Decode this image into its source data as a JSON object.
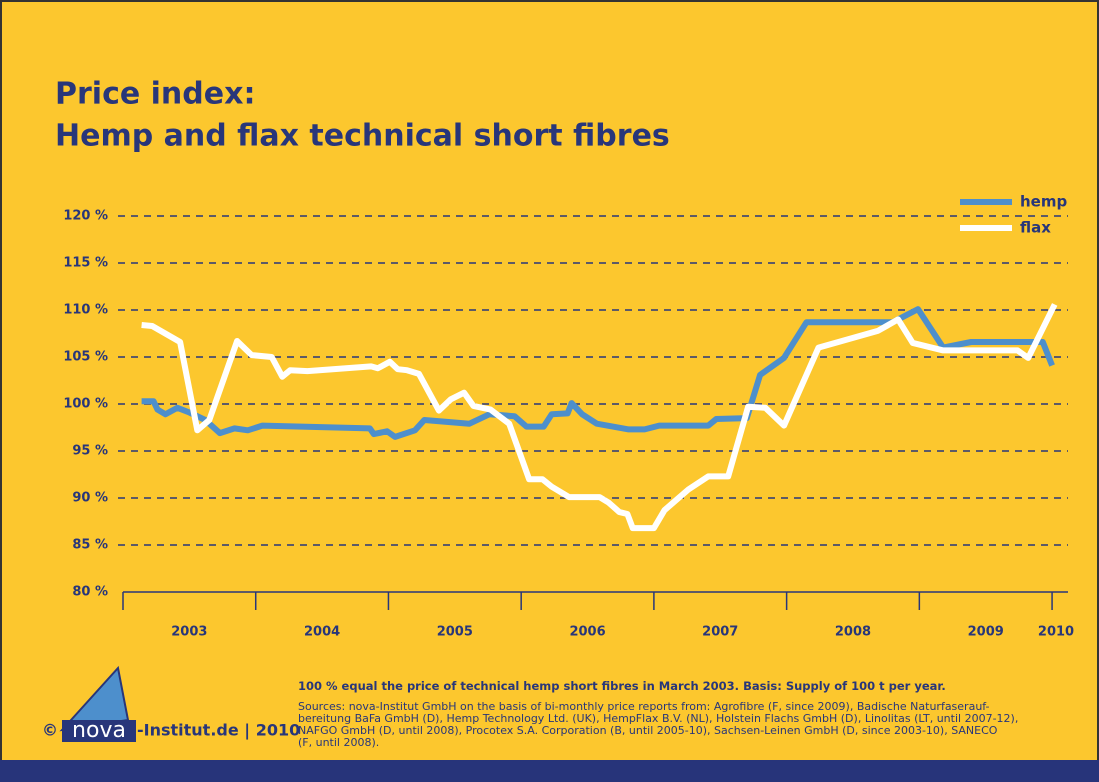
{
  "chart_data": {
    "type": "line",
    "title_lines": [
      "Price index:",
      "Hemp and flax technical short fibres"
    ],
    "xlim": [
      2003,
      2010.12
    ],
    "xticks": [
      2003,
      2004,
      2005,
      2006,
      2007,
      2008,
      2009,
      2010
    ],
    "ylim": [
      80,
      120
    ],
    "yticks": [
      {
        "value": 80,
        "label": "80 %"
      },
      {
        "value": 85,
        "label": "85 %"
      },
      {
        "value": 90,
        "label": "90 %"
      },
      {
        "value": 95,
        "label": "95 %"
      },
      {
        "value": 100,
        "label": "100 %"
      },
      {
        "value": 105,
        "label": "105 %"
      },
      {
        "value": 110,
        "label": "110 %"
      },
      {
        "value": 115,
        "label": "115 %"
      },
      {
        "value": 120,
        "label": "120 %"
      }
    ],
    "grid": true,
    "legend": "top-right",
    "series": [
      {
        "name": "hemp",
        "color": "#4d8fcc",
        "x": [
          2003.14,
          2003.23,
          2003.26,
          2003.32,
          2003.41,
          2003.5,
          2003.62,
          2003.73,
          2003.84,
          2003.94,
          2004.05,
          2004.86,
          2004.89,
          2004.99,
          2005.05,
          2005.2,
          2005.27,
          2005.61,
          2005.76,
          2005.95,
          2006.04,
          2006.17,
          2006.23,
          2006.35,
          2006.38,
          2006.46,
          2006.57,
          2006.81,
          2006.93,
          2007.04,
          2007.41,
          2007.47,
          2007.7,
          2007.8,
          2007.98,
          2008.15,
          2008.8,
          2008.99,
          2009.18,
          2009.39,
          2009.93,
          2010.0
        ],
        "values": [
          100.3,
          100.3,
          99.4,
          98.9,
          99.6,
          99.1,
          98.3,
          96.9,
          97.4,
          97.2,
          97.7,
          97.4,
          96.8,
          97.1,
          96.5,
          97.2,
          98.3,
          97.9,
          98.9,
          98.7,
          97.6,
          97.6,
          98.9,
          99.0,
          100.1,
          98.9,
          97.9,
          97.3,
          97.3,
          97.7,
          97.7,
          98.4,
          98.5,
          103.1,
          104.9,
          108.7,
          108.7,
          110.1,
          106.0,
          106.6,
          106.6,
          104.1
        ]
      },
      {
        "name": "flax",
        "color": "#ffffff",
        "x": [
          2003.14,
          2003.22,
          2003.43,
          2003.56,
          2003.65,
          2003.86,
          2003.97,
          2004.12,
          2004.2,
          2004.26,
          2004.39,
          2004.87,
          2004.92,
          2005.01,
          2005.07,
          2005.14,
          2005.23,
          2005.38,
          2005.47,
          2005.57,
          2005.64,
          2005.77,
          2005.91,
          2006.06,
          2006.16,
          2006.23,
          2006.36,
          2006.59,
          2006.66,
          2006.74,
          2006.8,
          2006.84,
          2007.0,
          2007.08,
          2007.26,
          2007.41,
          2007.56,
          2007.71,
          2007.84,
          2007.98,
          2008.24,
          2008.69,
          2008.84,
          2008.95,
          2009.18,
          2009.74,
          2009.82,
          2010.02
        ],
        "values": [
          108.4,
          108.3,
          106.6,
          97.2,
          98.3,
          106.7,
          105.2,
          105.0,
          102.9,
          103.6,
          103.5,
          104.0,
          103.8,
          104.5,
          103.7,
          103.6,
          103.2,
          99.3,
          100.5,
          101.2,
          99.8,
          99.4,
          97.9,
          92.0,
          92.0,
          91.2,
          90.1,
          90.1,
          89.5,
          88.5,
          88.3,
          86.8,
          86.8,
          88.7,
          90.9,
          92.3,
          92.3,
          99.7,
          99.6,
          97.7,
          106.0,
          107.8,
          109.0,
          106.5,
          105.7,
          105.7,
          104.9,
          110.6
        ]
      }
    ]
  },
  "footer": {
    "note_bold": "100 % equal the price of technical hemp short fibres in March 2003.",
    "note": "Basis: Supply of 100 t per year.",
    "sources": [
      "Sources: nova-Institut GmbH on the basis of bi-monthly price reports from: Agrofibre (F, since 2009), Badische Naturfaserauf-",
      "bereitung BaFa GmbH (D), Hemp Technology Ltd. (UK), HempFlax B.V. (NL), Holstein Flachs GmbH (D), Linolitas (LT, until 2007-12),",
      "NAFGO GmbH (D, until 2008), Procotex S.A. Corporation (B, until 2005-10), Sachsen-Leinen GmbH (D, since 2003-10), SANECO",
      "(F, until 2008)."
    ],
    "copyright": "©",
    "logo": "nova",
    "logo_text": "-Institut.de | 2010"
  }
}
